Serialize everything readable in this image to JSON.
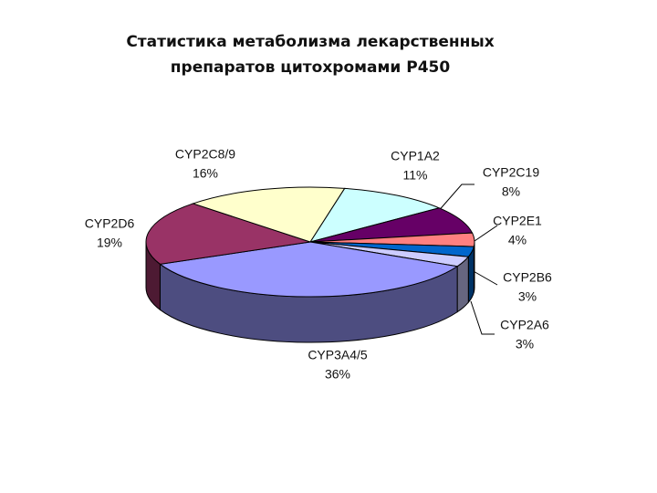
{
  "chart_data": {
    "type": "pie3d",
    "title": [
      "Статистика метаболизма лекарственных",
      "препаратов цитохромами Р450"
    ],
    "categories": [
      "CYP1A2",
      "CYP2C19",
      "CYP2E1",
      "CYP2B6",
      "CYP2A6",
      "CYP3A4/5",
      "CYP2D6",
      "CYP2C8/9"
    ],
    "values": [
      11,
      8,
      4,
      3,
      3,
      36,
      19,
      16
    ],
    "value_labels": [
      "11%",
      "8%",
      "4%",
      "3%",
      "3%",
      "36%",
      "19%",
      "16%"
    ],
    "colors": [
      "#ccffff",
      "#660066",
      "#ff8080",
      "#0066cc",
      "#ccccff",
      "#9999ff",
      "#993366",
      "#ffffcc"
    ]
  }
}
